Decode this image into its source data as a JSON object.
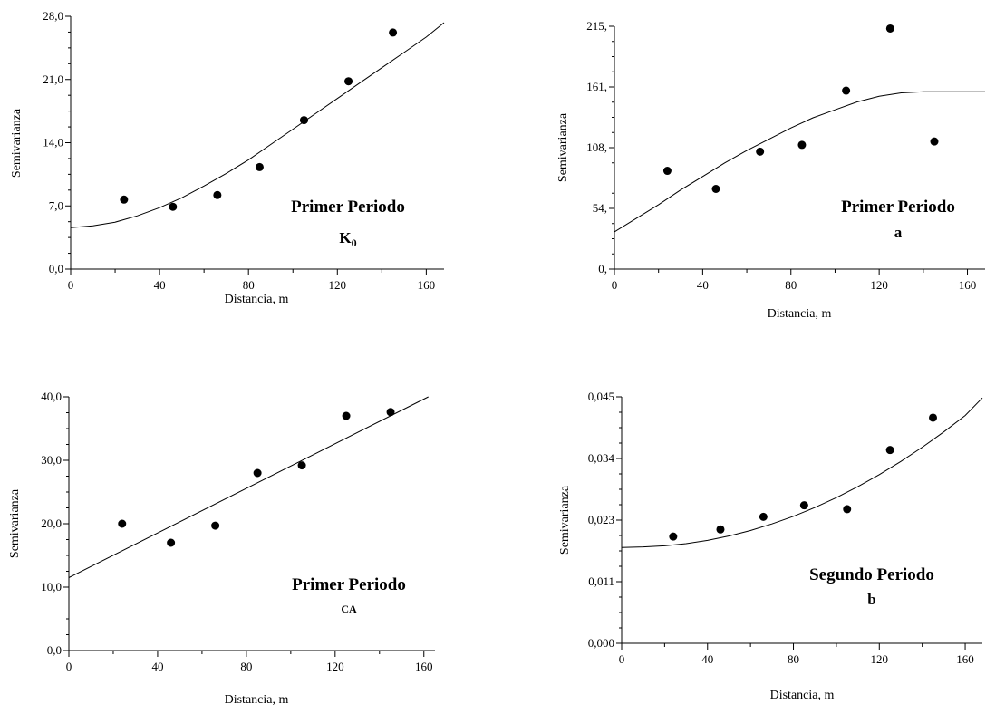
{
  "chart_data": [
    {
      "type": "scatter",
      "title": "Primer Periodo",
      "subtitle": "K",
      "subtitle_subscript": "0",
      "xlabel": "Distancia, m",
      "ylabel": "Semivarianza",
      "xlim": [
        0,
        168
      ],
      "ylim": [
        0,
        28
      ],
      "xticks": [
        "0",
        "40",
        "80",
        "120",
        "160"
      ],
      "yticks": [
        "0,0",
        "7,0",
        "14,0",
        "21,0",
        "28,0"
      ],
      "x": [
        24,
        46,
        66,
        85,
        105,
        125,
        145
      ],
      "y": [
        7.7,
        6.9,
        8.2,
        11.3,
        16.5,
        20.8,
        26.2
      ],
      "fit_x": [
        0,
        10,
        20,
        30,
        40,
        50,
        60,
        70,
        80,
        90,
        100,
        110,
        120,
        130,
        140,
        150,
        160,
        168
      ],
      "fit_y": [
        4.6,
        4.8,
        5.2,
        5.9,
        6.8,
        7.9,
        9.2,
        10.6,
        12.1,
        13.8,
        15.5,
        17.2,
        18.9,
        20.6,
        22.3,
        24.0,
        25.7,
        27.3
      ]
    },
    {
      "type": "scatter",
      "title": "Primer Periodo",
      "subtitle": "a",
      "xlabel": "Distancia, m",
      "ylabel": "Semivarianza",
      "xlim": [
        0,
        168
      ],
      "ylim": [
        0,
        215
      ],
      "xticks": [
        "0",
        "40",
        "80",
        "120",
        "160"
      ],
      "yticks": [
        "0,",
        "54,",
        "108,",
        "161,",
        "215,"
      ],
      "x": [
        24,
        46,
        66,
        85,
        105,
        125,
        145
      ],
      "y": [
        87,
        71,
        104,
        110,
        158,
        213,
        113
      ],
      "fit_x": [
        0,
        10,
        20,
        30,
        40,
        50,
        60,
        70,
        80,
        90,
        100,
        110,
        120,
        130,
        140,
        150,
        160,
        168
      ],
      "fit_y": [
        33,
        45,
        57,
        70,
        82,
        94,
        105,
        115,
        125,
        134,
        141,
        148,
        153,
        156,
        157,
        157,
        157,
        157
      ]
    },
    {
      "type": "scatter",
      "title": "Primer Periodo",
      "subtitle": "CA",
      "xlabel": "Distancia, m",
      "ylabel": "Semivarianza",
      "xlim": [
        0,
        165
      ],
      "ylim": [
        0,
        40
      ],
      "xticks": [
        "0",
        "40",
        "80",
        "120",
        "160"
      ],
      "yticks": [
        "0,0",
        "10,0",
        "20,0",
        "30,0",
        "40,0"
      ],
      "x": [
        24,
        46,
        66,
        85,
        105,
        125,
        145
      ],
      "y": [
        20.0,
        17.0,
        19.7,
        28.0,
        29.2,
        37.0,
        37.6
      ],
      "fit_x": [
        0,
        162
      ],
      "fit_y": [
        11.5,
        40.0
      ]
    },
    {
      "type": "scatter",
      "title": "Segundo Periodo",
      "subtitle": "b",
      "xlabel": "Distancia, m",
      "ylabel": "Semivarianza",
      "xlim": [
        0,
        168
      ],
      "ylim": [
        0,
        0.045
      ],
      "xticks": [
        "0",
        "40",
        "80",
        "120",
        "160"
      ],
      "yticks": [
        "0,000",
        "0,011",
        "0,023",
        "0,034",
        "0,045"
      ],
      "x": [
        24,
        46,
        66,
        85,
        105,
        125,
        145
      ],
      "y": [
        0.0195,
        0.0208,
        0.0231,
        0.0252,
        0.0245,
        0.0353,
        0.0412
      ],
      "fit_x": [
        0,
        10,
        20,
        30,
        40,
        50,
        60,
        70,
        80,
        90,
        100,
        110,
        120,
        130,
        140,
        150,
        160,
        168
      ],
      "fit_y": [
        0.0175,
        0.0176,
        0.0178,
        0.0182,
        0.0188,
        0.0196,
        0.0206,
        0.0218,
        0.0232,
        0.0248,
        0.0266,
        0.0286,
        0.0308,
        0.0332,
        0.0358,
        0.0386,
        0.0416,
        0.0448
      ]
    }
  ]
}
